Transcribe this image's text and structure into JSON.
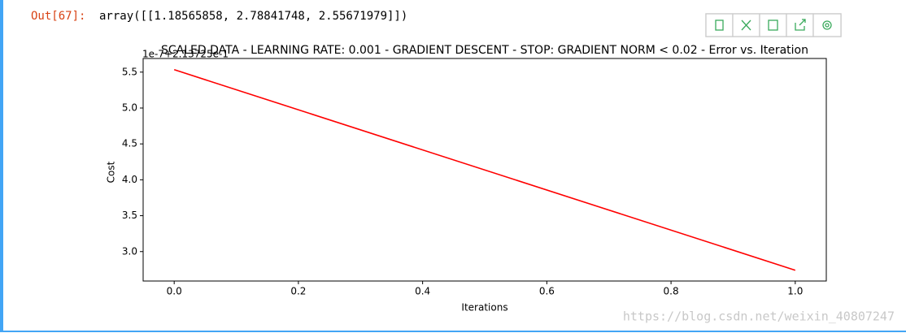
{
  "cell": {
    "prompt": "Out[67]:",
    "output": "array([[1.18565858, 2.78841748, 2.55671979]])"
  },
  "watermark": "https://blog.csdn.net/weixin_40807247",
  "chart_data": {
    "type": "line",
    "title": "SCALED DATA - LEARNING RATE: 0.001 - GRADIENT DESCENT - STOP: GRADIENT NORM < 0.02 - Error vs. Iteration",
    "y_offset_label": "1e-7+2.13725e-1",
    "x_label": "Iterations",
    "y_label": "Cost",
    "x": [
      0,
      1
    ],
    "series": [
      {
        "name": "Cost",
        "color": "#ff0000",
        "values": [
          5.534,
          2.74
        ]
      }
    ],
    "xlim": [
      -0.05,
      1.05
    ],
    "xticks": [
      {
        "value": 0,
        "label": "0.0"
      },
      {
        "value": 0.2,
        "label": "0.2"
      },
      {
        "value": 0.4,
        "label": "0.4"
      },
      {
        "value": 0.6,
        "label": "0.6"
      },
      {
        "value": 0.8,
        "label": "0.8"
      },
      {
        "value": 1,
        "label": "1.0"
      }
    ],
    "ylim": [
      2.59,
      5.69
    ],
    "yticks": [
      {
        "value": 3,
        "label": "3.0"
      },
      {
        "value": 3.5,
        "label": "3.5"
      },
      {
        "value": 4,
        "label": "4.0"
      },
      {
        "value": 4.5,
        "label": "4.5"
      },
      {
        "value": 5,
        "label": "5.0"
      },
      {
        "value": 5.5,
        "label": "5.5"
      }
    ],
    "grid": false,
    "legend": false
  }
}
